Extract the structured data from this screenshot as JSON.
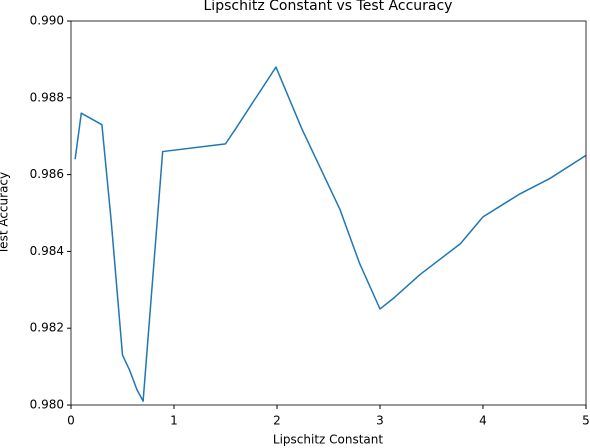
{
  "chart_data": {
    "type": "line",
    "title": "Lipschitz Constant vs Test Accuracy",
    "x_label": "Lipschitz Constant",
    "y_label": "Test Accuracy",
    "x": [
      0.04,
      0.1,
      0.3,
      0.39,
      0.5,
      0.57,
      0.64,
      0.7,
      0.89,
      1.5,
      1.6,
      1.99,
      2.24,
      2.61,
      2.8,
      3.0,
      3.14,
      3.39,
      3.78,
      4.0,
      4.36,
      4.65,
      5.0
    ],
    "series": [
      {
        "color": "#1f77b4",
        "values": [
          0.9864,
          0.9876,
          0.9873,
          0.9848,
          0.9813,
          0.9809,
          0.9804,
          0.9801,
          0.9866,
          0.9868,
          0.9872,
          0.9888,
          0.9872,
          0.9851,
          0.9837,
          0.9825,
          0.9828,
          0.9834,
          0.9842,
          0.9849,
          0.9855,
          0.9859,
          0.9865
        ]
      }
    ],
    "xlim": [
      0,
      5
    ],
    "ylim": [
      0.98,
      0.99
    ],
    "xticks": [
      0,
      1,
      2,
      3,
      4,
      5
    ],
    "yticks": [
      {
        "value": 0.98,
        "label": "0.980"
      },
      {
        "value": 0.982,
        "label": "0.982"
      },
      {
        "value": 0.984,
        "label": "0.984"
      },
      {
        "value": 0.986,
        "label": "0.986"
      },
      {
        "value": 0.988,
        "label": "0.988"
      },
      {
        "value": 0.99,
        "label": "0.990"
      }
    ],
    "grid": false
  }
}
